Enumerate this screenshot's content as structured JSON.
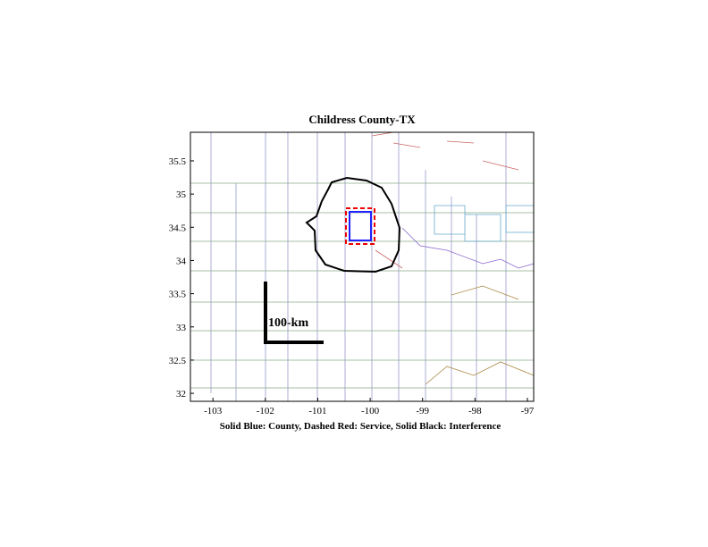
{
  "chart_data": {
    "type": "map",
    "title": "Childress County-TX",
    "xlabel": "Solid Blue: County, Dashed Red: Service, Solid Black: Interference",
    "scale_label": "100-km",
    "xlim": [
      -103.43,
      -96.88
    ],
    "ylim": [
      31.88,
      35.93
    ],
    "xticks": [
      -103,
      -102,
      -101,
      -100,
      -99,
      -98,
      -97
    ],
    "yticks": [
      32,
      32.5,
      33,
      33.5,
      34,
      34.5,
      35,
      35.5
    ]
  }
}
